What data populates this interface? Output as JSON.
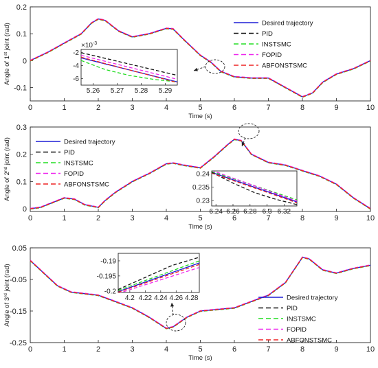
{
  "figure": {
    "colors": {
      "Desired trajectory": "#1f1fd6",
      "PID": "#111111",
      "INSTSMC": "#22dd22",
      "FOPID": "#ee22ee",
      "ABFONSTSMC": "#ee2222"
    }
  },
  "chart_data": [
    {
      "type": "line",
      "xlabel": "Time (s)",
      "ylabel": "Angle of 1st joint (rad)",
      "ylabel_main": "Angle of 1",
      "ylabel_sup": "st",
      "ylabel_tail": " joint (rad)",
      "xlim": [
        0,
        10
      ],
      "ylim": [
        -0.15,
        0.2
      ],
      "xticks": [
        "0",
        "1",
        "2",
        "3",
        "4",
        "5",
        "6",
        "7",
        "8",
        "9",
        "10"
      ],
      "yticks": [
        "-0.1",
        "0",
        "0.1",
        "0.2"
      ],
      "legend_position": "top-right",
      "series": [
        {
          "name": "Desired trajectory"
        },
        {
          "name": "PID"
        },
        {
          "name": "INSTSMC"
        },
        {
          "name": "FOPID"
        },
        {
          "name": "ABFONSTSMC"
        }
      ],
      "trajectory": {
        "x": [
          0,
          0.5,
          1,
          1.5,
          1.8,
          2,
          2.2,
          2.6,
          3,
          3.5,
          4,
          4.2,
          4.5,
          5,
          5.3,
          5.6,
          6,
          6.5,
          7,
          7.5,
          8,
          8.3,
          8.6,
          9,
          9.5,
          10
        ],
        "y": [
          0,
          0.03,
          0.065,
          0.1,
          0.14,
          0.155,
          0.15,
          0.11,
          0.088,
          0.1,
          0.12,
          0.118,
          0.08,
          0.02,
          -0.005,
          -0.04,
          -0.06,
          -0.065,
          -0.065,
          -0.1,
          -0.135,
          -0.12,
          -0.08,
          -0.05,
          -0.03,
          0
        ]
      },
      "inset": {
        "xlim": [
          5.255,
          5.295
        ],
        "ylim": [
          -7,
          -1.5
        ],
        "xticks": [
          "5.26",
          "5.27",
          "5.28",
          "5.29"
        ],
        "yticks": [
          "-2",
          "-4",
          "-6"
        ],
        "exponent": "×10",
        "exponent_power": "-3",
        "series": [
          {
            "name": "Desired trajectory",
            "x": [
              5.255,
              5.295
            ],
            "y": [
              -2.8,
              -6.5
            ]
          },
          {
            "name": "PID",
            "x": [
              5.255,
              5.295
            ],
            "y": [
              -2.0,
              -5.5
            ]
          },
          {
            "name": "INSTSMC",
            "x": [
              5.255,
              5.265,
              5.275,
              5.285,
              5.295
            ],
            "y": [
              -3.2,
              -4.6,
              -5.5,
              -6.1,
              -6.5
            ]
          },
          {
            "name": "FOPID",
            "x": [
              5.255,
              5.295
            ],
            "y": [
              -2.4,
              -6.1
            ]
          },
          {
            "name": "ABFONSTSMC",
            "x": [
              5.255,
              5.295
            ],
            "y": [
              -2.7,
              -6.6
            ]
          }
        ]
      }
    },
    {
      "type": "line",
      "xlabel": "Time (s)",
      "ylabel": "Angle of 2nd joint (rad)",
      "ylabel_main": "Angle of 2",
      "ylabel_sup": "nd",
      "ylabel_tail": " joint (rad)",
      "xlim": [
        0,
        10
      ],
      "ylim": [
        -0.01,
        0.3
      ],
      "xticks": [
        "0",
        "1",
        "2",
        "3",
        "4",
        "5",
        "6",
        "7",
        "8",
        "9",
        "10"
      ],
      "yticks": [
        "0",
        "0.1",
        "0.2",
        "0.3"
      ],
      "legend_position": "top-left",
      "series": [
        {
          "name": "Desired trajectory"
        },
        {
          "name": "PID"
        },
        {
          "name": "INSTSMC"
        },
        {
          "name": "FOPID"
        },
        {
          "name": "ABFONSTSMC"
        }
      ],
      "trajectory": {
        "x": [
          0,
          0.3,
          0.6,
          1,
          1.3,
          1.6,
          2,
          2.2,
          2.5,
          3,
          3.5,
          4,
          4.2,
          4.5,
          5,
          5.4,
          5.8,
          6,
          6.2,
          6.5,
          7,
          7.5,
          8,
          8.5,
          9,
          9.5,
          10
        ],
        "y": [
          0,
          0.005,
          0.02,
          0.04,
          0.035,
          0.015,
          0.005,
          0.03,
          0.06,
          0.1,
          0.13,
          0.165,
          0.168,
          0.16,
          0.15,
          0.19,
          0.235,
          0.255,
          0.25,
          0.2,
          0.17,
          0.16,
          0.14,
          0.12,
          0.09,
          0.04,
          0
        ]
      },
      "inset": {
        "xlim": [
          6.235,
          6.335
        ],
        "ylim": [
          0.228,
          0.241
        ],
        "xticks": [
          "6.24",
          "6.26",
          "6.28",
          "6.3",
          "6.32"
        ],
        "yticks": [
          "0.24",
          "0.235",
          "0.23"
        ],
        "series": [
          {
            "name": "Desired trajectory",
            "x": [
              6.235,
              6.335
            ],
            "y": [
              0.2405,
              0.2295
            ]
          },
          {
            "name": "PID",
            "x": [
              6.235,
              6.26,
              6.285,
              6.31,
              6.335
            ],
            "y": [
              0.2405,
              0.2365,
              0.233,
              0.2305,
              0.2285
            ]
          },
          {
            "name": "INSTSMC",
            "x": [
              6.235,
              6.335
            ],
            "y": [
              0.2408,
              0.2303
            ]
          },
          {
            "name": "FOPID",
            "x": [
              6.235,
              6.335
            ],
            "y": [
              0.2412,
              0.2298
            ]
          },
          {
            "name": "ABFONSTSMC",
            "x": [
              6.235,
              6.335
            ],
            "y": [
              0.2402,
              0.2292
            ]
          }
        ]
      }
    },
    {
      "type": "line",
      "xlabel": "Time (s)",
      "ylabel": "Angle of 3rd joint (rad)",
      "ylabel_main": "Angle of 3",
      "ylabel_sup": "rd",
      "ylabel_tail": " joint (rad)",
      "xlim": [
        0,
        10
      ],
      "ylim": [
        -0.25,
        0.05
      ],
      "xticks": [
        "0",
        "1",
        "2",
        "3",
        "4",
        "5",
        "6",
        "7",
        "8",
        "9",
        "10"
      ],
      "yticks": [
        "0.05",
        "-0.05",
        "-0.15",
        "-0.25"
      ],
      "legend_position": "bottom-right",
      "series": [
        {
          "name": "Desired trajectory"
        },
        {
          "name": "PID"
        },
        {
          "name": "INSTSMC"
        },
        {
          "name": "FOPID"
        },
        {
          "name": "ABFONSTSMC"
        }
      ],
      "trajectory": {
        "x": [
          0,
          0.4,
          0.8,
          1.2,
          2,
          2.5,
          3,
          3.5,
          4,
          4.2,
          4.6,
          5,
          5.5,
          6,
          6.5,
          7,
          7.5,
          8,
          8.2,
          8.6,
          9,
          9.5,
          10
        ],
        "y": [
          0.01,
          -0.03,
          -0.07,
          -0.09,
          -0.1,
          -0.12,
          -0.14,
          -0.17,
          -0.205,
          -0.2,
          -0.17,
          -0.15,
          -0.145,
          -0.14,
          -0.12,
          -0.1,
          -0.06,
          0.02,
          0.015,
          -0.02,
          -0.03,
          -0.015,
          -0.005
        ]
      },
      "inset": {
        "xlim": [
          4.185,
          4.29
        ],
        "ylim": [
          -0.2005,
          -0.1875
        ],
        "xticks": [
          "4.2",
          "4.22",
          "4.24",
          "4.26",
          "4.28"
        ],
        "yticks": [
          "-0.19",
          "-0.195",
          "-0.2"
        ],
        "series": [
          {
            "name": "Desired trajectory",
            "x": [
              4.185,
              4.29
            ],
            "y": [
              -0.2002,
              -0.1907
            ]
          },
          {
            "name": "PID",
            "x": [
              4.185,
              4.22,
              4.255,
              4.29
            ],
            "y": [
              -0.1995,
              -0.1955,
              -0.1915,
              -0.1888
            ]
          },
          {
            "name": "INSTSMC",
            "x": [
              4.185,
              4.29
            ],
            "y": [
              -0.1998,
              -0.19
            ]
          },
          {
            "name": "FOPID",
            "x": [
              4.185,
              4.29
            ],
            "y": [
              -0.2008,
              -0.1922
            ]
          },
          {
            "name": "ABFONSTSMC",
            "x": [
              4.185,
              4.29
            ],
            "y": [
              -0.2004,
              -0.1912
            ]
          }
        ]
      }
    }
  ]
}
